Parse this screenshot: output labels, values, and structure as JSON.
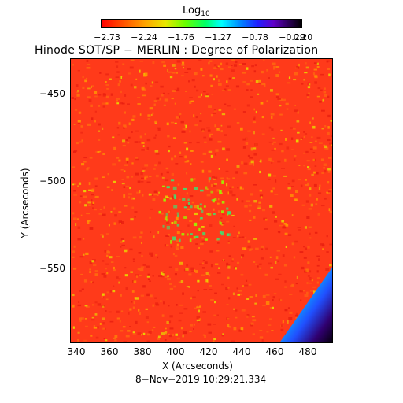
{
  "colorbar": {
    "title": "Log",
    "title_sub": "10",
    "ticks": [
      "−2.73",
      "−2.24",
      "−1.76",
      "−1.27",
      "−0.78",
      "−0.29",
      "0.20"
    ]
  },
  "title": "Hinode SOT/SP − MERLIN : Degree of Polarization",
  "axes": {
    "xlabel": "X (Arcseconds)",
    "ylabel": "Y (Arcseconds)",
    "xticks": [
      "340",
      "360",
      "380",
      "400",
      "420",
      "440",
      "460",
      "480"
    ],
    "yticks": [
      "−450",
      "−500",
      "−550"
    ]
  },
  "timestamp": "8−Nov−2019 10:29:21.334",
  "colors": {
    "background_field": "#ff3a1a",
    "speckle": "#e8e000",
    "feature": "#40e070",
    "limb_band": [
      "#00e080",
      "#00c8ff",
      "#2050ff",
      "#300070",
      "#000000"
    ]
  }
}
